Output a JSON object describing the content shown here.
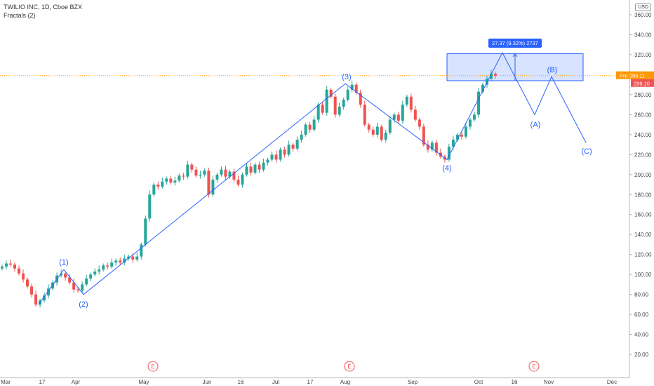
{
  "header": {
    "title": "TWILIO INC, 1D, Cboe BZX",
    "indicator": "Fractals (2)",
    "currency": "USD"
  },
  "chart_data": {
    "type": "candlestick",
    "y_ticks": [
      20,
      40,
      60,
      80,
      100,
      120,
      140,
      160,
      180,
      200,
      220,
      240,
      260,
      280,
      300,
      320,
      340,
      360
    ],
    "y_tick_labels": [
      "20.00",
      "40.00",
      "60.00",
      "80.00",
      "100.00",
      "120.00",
      "140.00",
      "160.00",
      "180.00",
      "200.00",
      "220.00",
      "240.00",
      "260.00",
      "280.00",
      "300.00",
      "320.00",
      "340.00",
      "360.00"
    ],
    "ylim": [
      0,
      370
    ],
    "x_labels": [
      "Mar",
      "17",
      "Apr",
      "May",
      "Jun",
      "16",
      "Jul",
      "17",
      "Aug",
      "Sep",
      "Oct",
      "16",
      "Nov",
      "Dec"
    ],
    "price_labels": [
      {
        "text": "Pre",
        "value": "299.11",
        "color": "#ff9800"
      },
      {
        "text": "",
        "value": "299.10",
        "color": "#ef5350"
      }
    ],
    "earnings_marker": "E",
    "measure_label": "27.37 (9.32%) 2737",
    "wave_labels": [
      "(1)",
      "(2)",
      "(3)",
      "(4)",
      "(A)",
      "(B)",
      "(C)"
    ],
    "wave_path_prices": [
      70,
      105,
      80,
      291,
      215,
      322,
      295,
      260,
      298,
      232
    ],
    "target_box": {
      "low": 294,
      "high": 321
    },
    "candle_closes": [
      108,
      111,
      110,
      106,
      101,
      95,
      88,
      80,
      70,
      74,
      79,
      86,
      92,
      99,
      101,
      97,
      92,
      85,
      84,
      90,
      96,
      100,
      103,
      105,
      109,
      108,
      112,
      114,
      112,
      116,
      118,
      115,
      118,
      130,
      156,
      180,
      190,
      188,
      193,
      196,
      192,
      194,
      199,
      198,
      210,
      205,
      199,
      200,
      204,
      180,
      195,
      200,
      205,
      198,
      203,
      195,
      190,
      200,
      208,
      202,
      210,
      205,
      212,
      215,
      220,
      215,
      225,
      220,
      230,
      226,
      235,
      240,
      250,
      245,
      255,
      270,
      262,
      285,
      278,
      260,
      268,
      275,
      285,
      290,
      282,
      270,
      250,
      245,
      240,
      248,
      235,
      242,
      255,
      260,
      254,
      270,
      278,
      265,
      255,
      248,
      230,
      225,
      232,
      222,
      218,
      215,
      228,
      235,
      240,
      238,
      248,
      255,
      260,
      283,
      290,
      296,
      301,
      299
    ]
  }
}
